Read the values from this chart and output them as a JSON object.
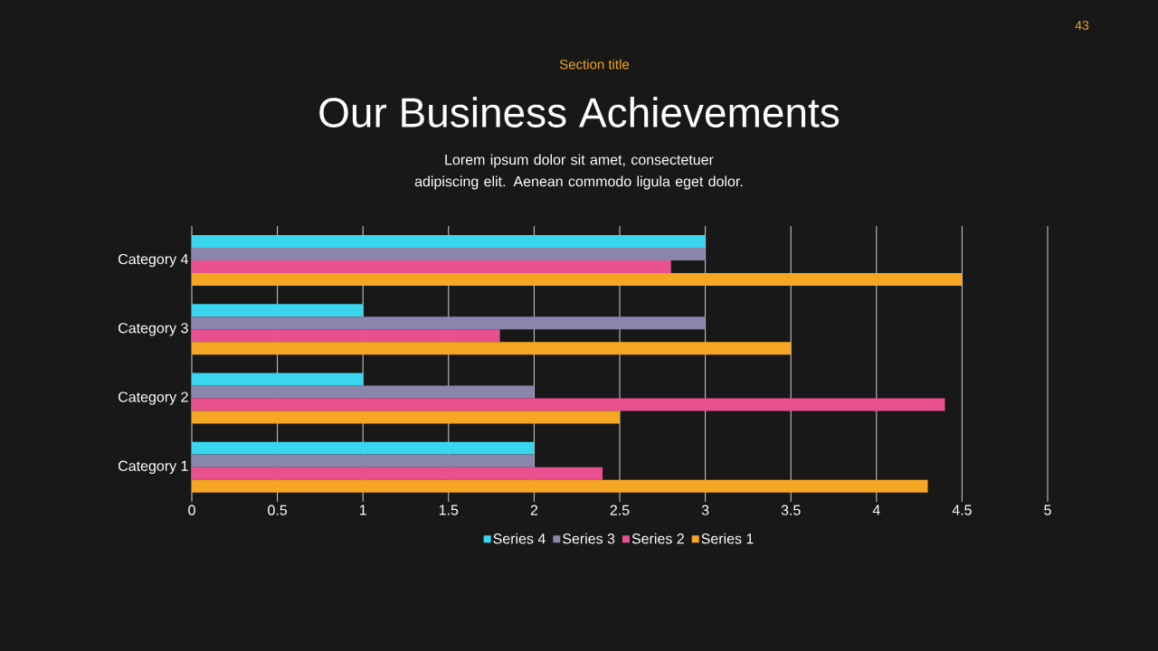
{
  "chart_data": {
    "type": "bar",
    "orientation": "horizontal",
    "title": "Our Business Achievements",
    "subtitle": "Lorem ipsum dolor sit amet, consectetuer adipiscing elit. Aenean commodo ligula eget dolor.",
    "annotations": [
      "Section title",
      "43"
    ],
    "categories": [
      "Category 4",
      "Category 3",
      "Category 2",
      "Category 1"
    ],
    "series": [
      {
        "name": "Series 4",
        "color": "#3ad6f0",
        "values": [
          3,
          1,
          1,
          2
        ]
      },
      {
        "name": "Series 3",
        "color": "#8a85ad",
        "values": [
          3,
          3,
          2,
          2
        ]
      },
      {
        "name": "Series 2",
        "color": "#e8508f",
        "values": [
          2.8,
          1.8,
          4.4,
          2.4
        ]
      },
      {
        "name": "Series 1",
        "color": "#f5a623",
        "values": [
          4.5,
          3.5,
          2.5,
          4.3
        ]
      }
    ],
    "xlim": [
      0,
      5
    ],
    "xticks": [
      0,
      0.5,
      1,
      1.5,
      2,
      2.5,
      3,
      3.5,
      4,
      4.5,
      5
    ],
    "grid": "x",
    "legend": "bottom"
  }
}
